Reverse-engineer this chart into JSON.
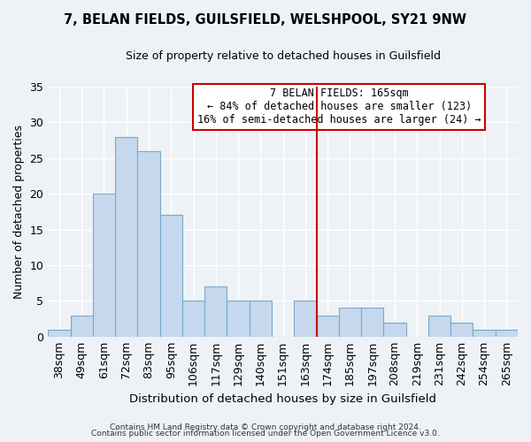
{
  "title": "7, BELAN FIELDS, GUILSFIELD, WELSHPOOL, SY21 9NW",
  "subtitle": "Size of property relative to detached houses in Guilsfield",
  "xlabel": "Distribution of detached houses by size in Guilsfield",
  "ylabel": "Number of detached properties",
  "categories": [
    "38sqm",
    "49sqm",
    "61sqm",
    "72sqm",
    "83sqm",
    "95sqm",
    "106sqm",
    "117sqm",
    "129sqm",
    "140sqm",
    "151sqm",
    "163sqm",
    "174sqm",
    "185sqm",
    "197sqm",
    "208sqm",
    "219sqm",
    "231sqm",
    "242sqm",
    "254sqm",
    "265sqm"
  ],
  "values": [
    1,
    3,
    20,
    28,
    26,
    17,
    5,
    7,
    5,
    5,
    0,
    5,
    3,
    4,
    4,
    2,
    0,
    3,
    2,
    1,
    1
  ],
  "bar_color": "#c5d8ed",
  "bar_edge_color": "#7aaac8",
  "background_color": "#eef2f7",
  "grid_color": "#ffffff",
  "vline_x_index": 11,
  "vline_color": "#cc0000",
  "ylim": [
    0,
    35
  ],
  "yticks": [
    0,
    5,
    10,
    15,
    20,
    25,
    30,
    35
  ],
  "annotation_title": "7 BELAN FIELDS: 165sqm",
  "annotation_line1": "← 84% of detached houses are smaller (123)",
  "annotation_line2": "16% of semi-detached houses are larger (24) →",
  "annotation_box_color": "#ffffff",
  "annotation_border_color": "#cc0000",
  "footer_line1": "Contains HM Land Registry data © Crown copyright and database right 2024.",
  "footer_line2": "Contains public sector information licensed under the Open Government Licence v3.0."
}
